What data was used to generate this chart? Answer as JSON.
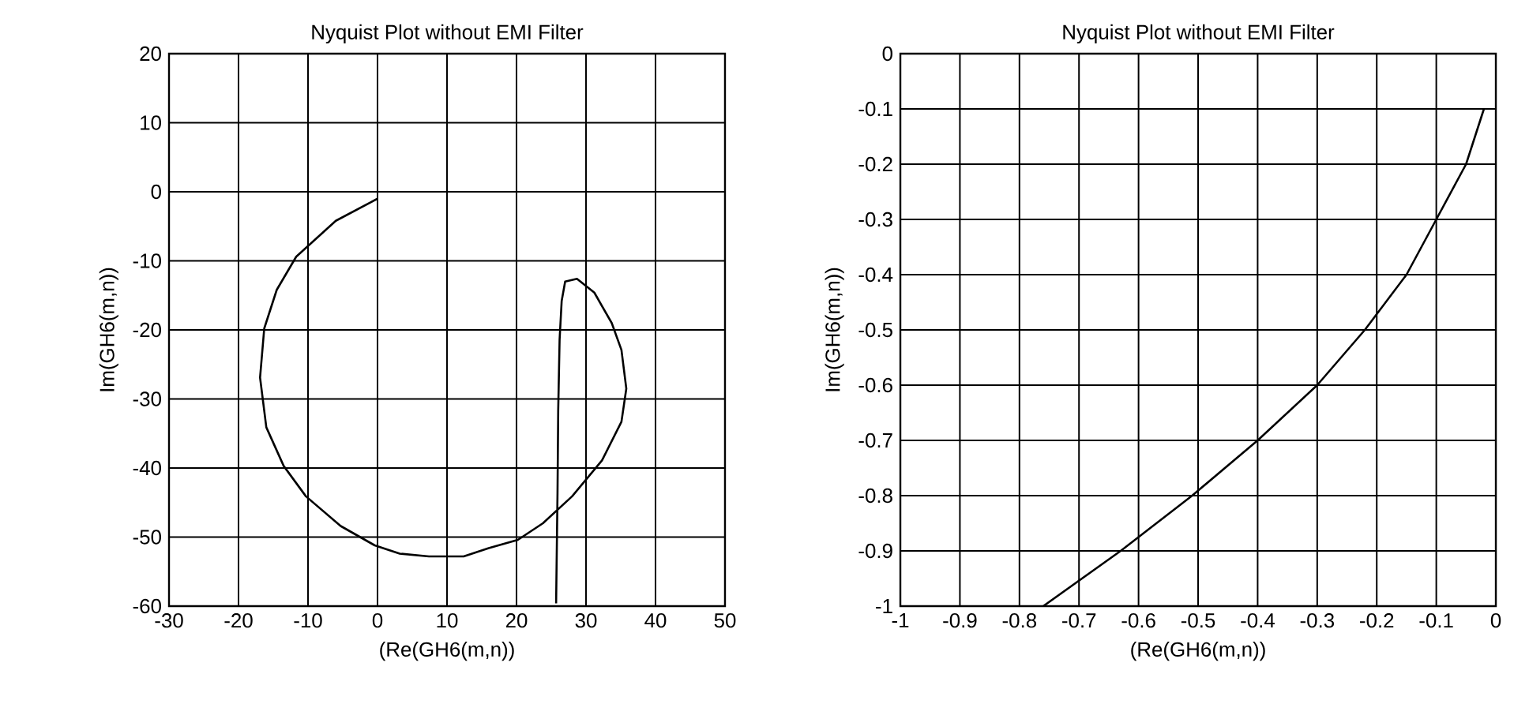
{
  "chart_data": [
    {
      "type": "line",
      "title": "Nyquist Plot without EMI Filter",
      "xlabel": "(Re(GH6(m,n))",
      "ylabel": "Im(GH6(m,n))",
      "x": [
        0,
        -6,
        -11.7,
        -14.5,
        -16.3,
        -16.9,
        -16,
        -13.5,
        -10.3,
        -5.3,
        -0.4,
        3.2,
        7.4,
        12.4,
        16,
        20.2,
        23.8,
        28,
        32.3,
        35.1,
        35.8,
        35.1,
        33.7,
        31.2,
        28.7,
        27,
        26.5,
        26.2,
        26,
        25.9,
        25.7
      ],
      "values": [
        -1,
        -4.2,
        -9.4,
        -14.2,
        -19.8,
        -26.9,
        -34.1,
        -39.7,
        -44.1,
        -48.4,
        -51.2,
        -52.4,
        -52.8,
        -52.8,
        -51.6,
        -50.4,
        -48,
        -44.1,
        -38.9,
        -33.3,
        -28.5,
        -22.9,
        -19,
        -14.6,
        -12.6,
        -13,
        -15.8,
        -21.4,
        -31.7,
        -43.7,
        -59.6
      ],
      "color": "#000000",
      "xlim": [
        -30,
        50
      ],
      "ylim": [
        -60,
        20
      ],
      "xticks": [
        -30,
        -20,
        -10,
        0,
        10,
        20,
        30,
        40,
        50
      ],
      "yticks": [
        -60,
        -50,
        -40,
        -30,
        -20,
        -10,
        0,
        10,
        20
      ],
      "grid": true
    },
    {
      "type": "line",
      "title": "Nyquist Plot without EMI Filter",
      "xlabel": "(Re(GH6(m,n))",
      "ylabel": "Im(GH6(m,n))",
      "x": [
        -0.02,
        -0.05,
        -0.1,
        -0.15,
        -0.22,
        -0.3,
        -0.4,
        -0.51,
        -0.63,
        -0.76
      ],
      "values": [
        -0.1,
        -0.2,
        -0.3,
        -0.4,
        -0.5,
        -0.6,
        -0.7,
        -0.8,
        -0.9,
        -1
      ],
      "color": "#000000",
      "xlim": [
        -1,
        0
      ],
      "ylim": [
        -1,
        0
      ],
      "xticks": [
        -1,
        -0.9,
        -0.8,
        -0.7,
        -0.6,
        -0.5,
        -0.4,
        -0.3,
        -0.2,
        -0.1,
        0
      ],
      "yticks": [
        -1,
        -0.9,
        -0.8,
        -0.7,
        -0.6,
        -0.5,
        -0.4,
        -0.3,
        -0.2,
        -0.1,
        0
      ],
      "grid": true
    }
  ]
}
